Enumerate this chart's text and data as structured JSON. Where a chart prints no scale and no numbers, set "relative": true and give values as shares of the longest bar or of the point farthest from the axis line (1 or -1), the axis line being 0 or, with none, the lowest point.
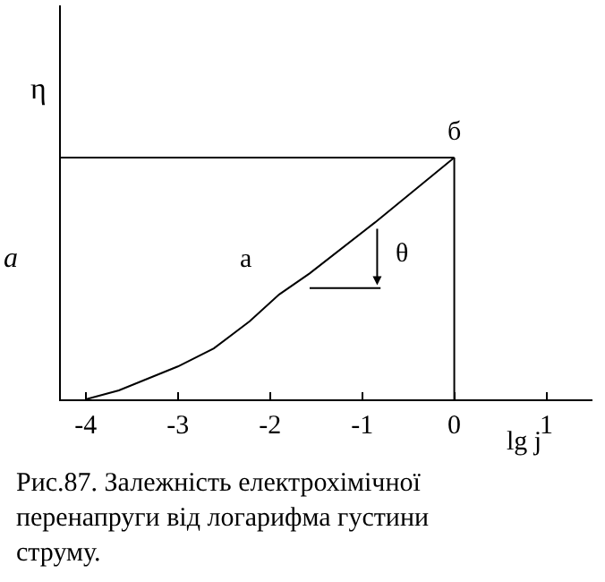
{
  "chart_data": {
    "type": "line",
    "relative": true,
    "title": "Рис.87. Залежність електрохімічної перенапруги від логарифма густини струму.",
    "xlabel": "lg j",
    "ylabel": "η",
    "x": [
      -4,
      -3.64,
      -3.0,
      -2.61,
      -2.22,
      -1.9,
      -1.57,
      -0.86,
      0
    ],
    "series": [
      {
        "color": "#000000",
        "values": [
          0,
          0.037,
          0.136,
          0.211,
          0.323,
          0.434,
          0.521,
          0.732,
          1
        ]
      },
      {
        "color": "#000000",
        "x": [
          -1.57,
          -0.8
        ],
        "values": [
          0.46,
          0.46
        ]
      }
    ],
    "ref_lines": [
      {
        "axis": "y",
        "value": 1,
        "color": "#000000"
      },
      {
        "axis": "x",
        "value": 0,
        "color": "#000000"
      }
    ],
    "xlim": [
      -4.27,
      1.5
    ],
    "xticks": [
      -4,
      -3,
      -2,
      -1,
      0,
      1
    ],
    "annotations": [
      "a",
      "а",
      {
        "text": "б",
        "x": 0,
        "y": 1
      },
      "θ"
    ],
    "marker": "none",
    "line_style": "solid",
    "tick_labels": "x"
  }
}
